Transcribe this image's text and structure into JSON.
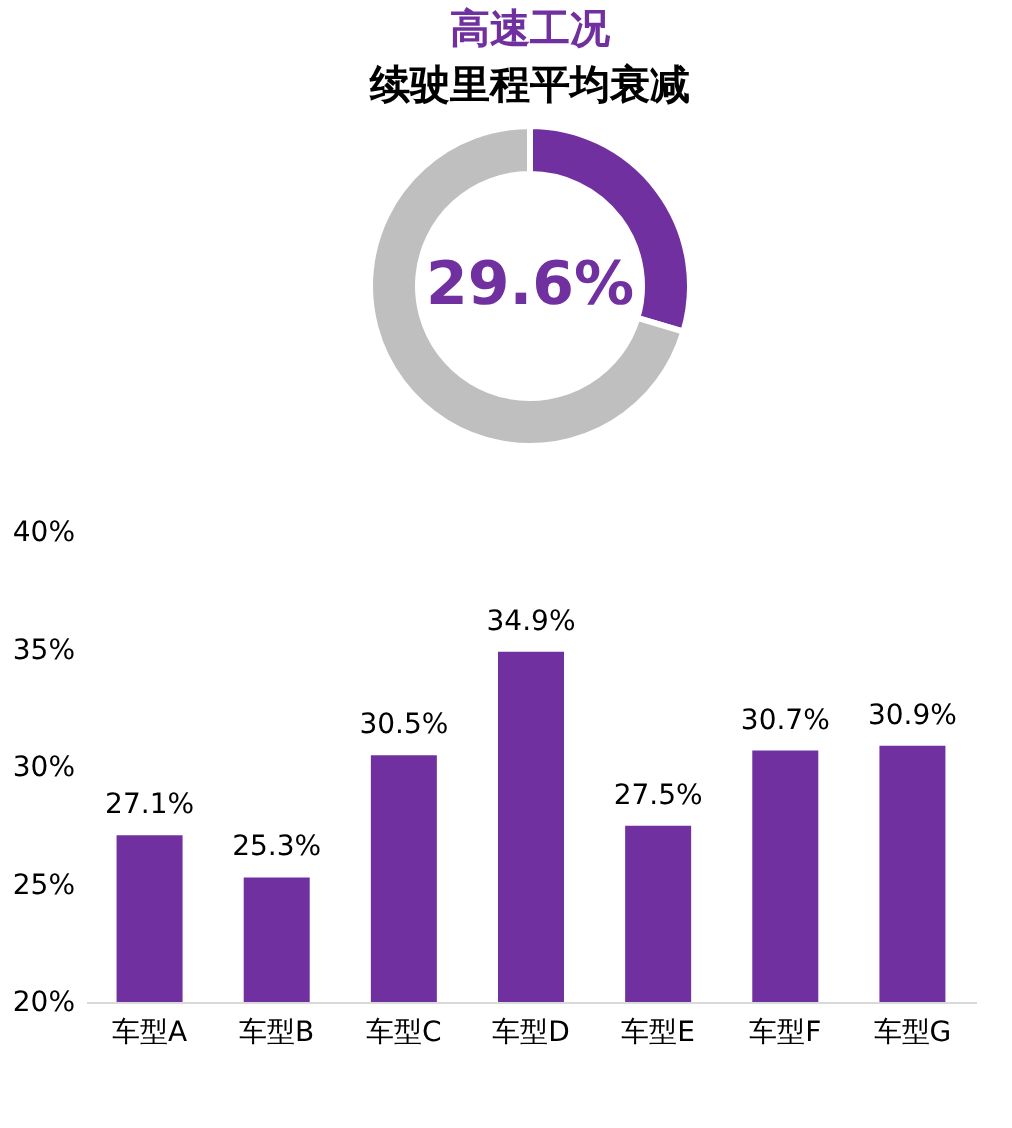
{
  "chart_data": [
    {
      "type": "donut",
      "title": "高速工况",
      "subtitle": "续驶里程平均衰减",
      "categories": [
        null,
        null
      ],
      "values": [
        29.6,
        70.4
      ],
      "colors": [
        "#7030a0",
        "#bfbfbf"
      ],
      "value_labels": [
        "29.6%",
        null
      ],
      "legend": false
    },
    {
      "type": "bar",
      "categories": [
        "车型A",
        "车型B",
        "车型C",
        "车型D",
        "车型E",
        "车型F",
        "车型G"
      ],
      "values": [
        27.1,
        25.3,
        30.5,
        34.9,
        27.5,
        30.7,
        30.9
      ],
      "color": "#7030a0",
      "value_labels": [
        "27.1%",
        "25.3%",
        "30.5%",
        "34.9%",
        "27.5%",
        "30.7%",
        "30.9%"
      ],
      "ylim": [
        20,
        40
      ],
      "yticks": [
        {
          "value": 20,
          "label": "20%"
        },
        {
          "value": 25,
          "label": "25%"
        },
        {
          "value": 30,
          "label": "30%"
        },
        {
          "value": 35,
          "label": "35%"
        },
        {
          "value": 40,
          "label": "40%"
        }
      ],
      "grid": false
    }
  ]
}
